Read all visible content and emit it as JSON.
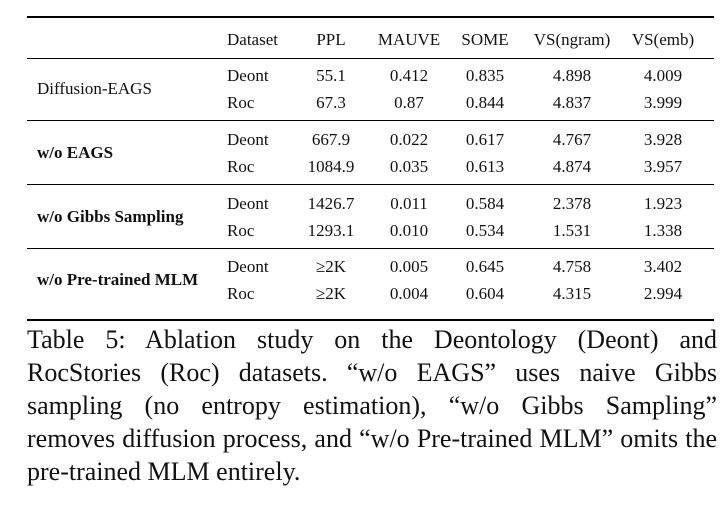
{
  "table": {
    "headers": [
      "",
      "Dataset",
      "PPL",
      "MAUVE",
      "SOME",
      "VS(ngram)",
      "VS(emb)"
    ],
    "groups": [
      {
        "method": "Diffusion-EAGS",
        "bold": false,
        "rows": [
          {
            "dataset": "Deont",
            "ppl": "55.1",
            "mauve": "0.412",
            "some": "0.835",
            "vs_ngram": "4.898",
            "vs_emb": "4.009"
          },
          {
            "dataset": "Roc",
            "ppl": "67.3",
            "mauve": "0.87",
            "some": "0.844",
            "vs_ngram": "4.837",
            "vs_emb": "3.999"
          }
        ]
      },
      {
        "method": "w/o EAGS",
        "bold": true,
        "rows": [
          {
            "dataset": "Deont",
            "ppl": "667.9",
            "mauve": "0.022",
            "some": "0.617",
            "vs_ngram": "4.767",
            "vs_emb": "3.928"
          },
          {
            "dataset": "Roc",
            "ppl": "1084.9",
            "mauve": "0.035",
            "some": "0.613",
            "vs_ngram": "4.874",
            "vs_emb": "3.957"
          }
        ]
      },
      {
        "method": "w/o Gibbs Sampling",
        "bold": true,
        "rows": [
          {
            "dataset": "Deont",
            "ppl": "1426.7",
            "mauve": "0.011",
            "some": "0.584",
            "vs_ngram": "2.378",
            "vs_emb": "1.923"
          },
          {
            "dataset": "Roc",
            "ppl": "1293.1",
            "mauve": "0.010",
            "some": "0.534",
            "vs_ngram": "1.531",
            "vs_emb": "1.338"
          }
        ]
      },
      {
        "method": "w/o Pre-trained MLM",
        "bold": true,
        "rows": [
          {
            "dataset": "Deont",
            "ppl": "≥2K",
            "mauve": "0.005",
            "some": "0.645",
            "vs_ngram": "4.758",
            "vs_emb": "3.402"
          },
          {
            "dataset": "Roc",
            "ppl": "≥2K",
            "mauve": "0.004",
            "some": "0.604",
            "vs_ngram": "4.315",
            "vs_emb": "2.994"
          }
        ]
      }
    ]
  },
  "caption": "Table 5: Ablation study on the Deontology (Deont) and RocStories (Roc) datasets.  “w/o EAGS” uses naive Gibbs sampling (no entropy estimation), “w/o Gibbs Sampling” removes diffusion process, and “w/o Pre-trained MLM” omits the pre-trained MLM entirely."
}
